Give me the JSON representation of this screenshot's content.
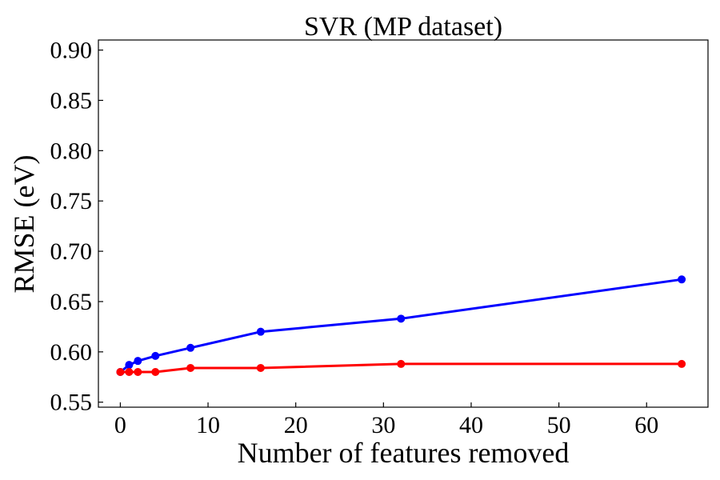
{
  "chart_data": {
    "type": "line",
    "title": "SVR (MP dataset)",
    "xlabel": "Number of features removed",
    "ylabel": "RMSE (eV)",
    "xlim": [
      -2.5,
      67
    ],
    "ylim": [
      0.545,
      0.91
    ],
    "xticks": [
      0,
      10,
      20,
      30,
      40,
      50,
      60
    ],
    "yticks": [
      0.55,
      0.6,
      0.65,
      0.7,
      0.75,
      0.8,
      0.85,
      0.9
    ],
    "x": [
      0,
      1,
      2,
      4,
      8,
      16,
      32,
      64
    ],
    "series": [
      {
        "color": "#0000ff",
        "values": [
          0.58,
          0.587,
          0.591,
          0.596,
          0.604,
          0.62,
          0.633,
          0.672
        ]
      },
      {
        "color": "#ff0000",
        "values": [
          0.58,
          0.58,
          0.58,
          0.58,
          0.584,
          0.584,
          0.588,
          0.588
        ]
      }
    ],
    "grid": false,
    "legend": "none"
  },
  "colors": {
    "axis": "#000000",
    "background": "#ffffff"
  }
}
